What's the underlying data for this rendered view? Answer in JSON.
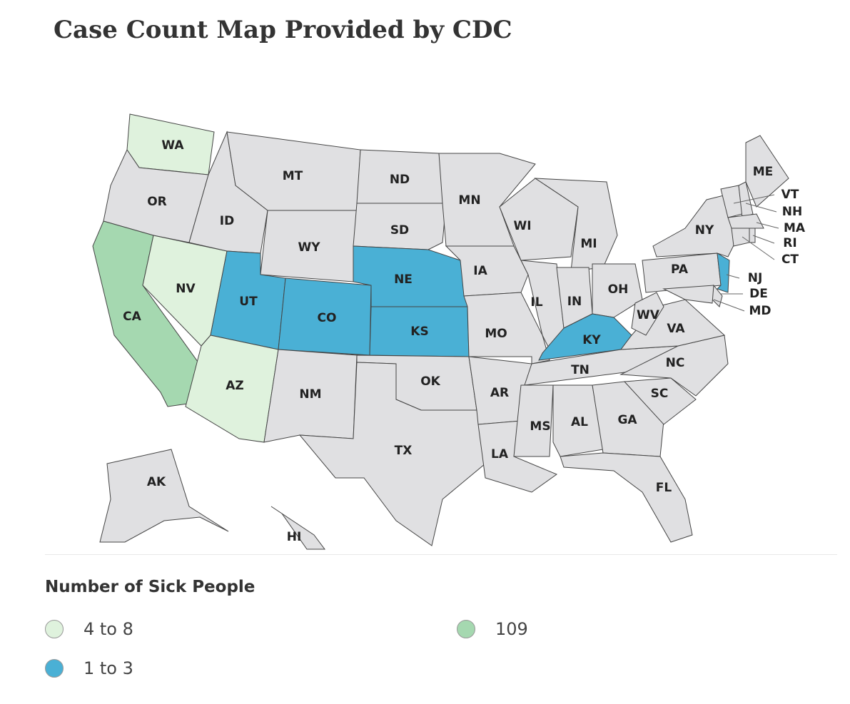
{
  "title": "Case Count Map Provided by CDC",
  "default_color": "#e0e0e2",
  "legend": {
    "title": "Number of Sick People",
    "items": [
      {
        "label": "4 to 8",
        "color": "#dff2dd"
      },
      {
        "label": "1 to 3",
        "color": "#4ab0d5"
      },
      {
        "label": "109",
        "color": "#a5d8b0"
      }
    ]
  },
  "states": [
    {
      "abbr": "WA",
      "group": 0
    },
    {
      "abbr": "OR",
      "group": null
    },
    {
      "abbr": "CA",
      "group": 2
    },
    {
      "abbr": "NV",
      "group": 0
    },
    {
      "abbr": "ID",
      "group": null
    },
    {
      "abbr": "MT",
      "group": null
    },
    {
      "abbr": "WY",
      "group": null
    },
    {
      "abbr": "UT",
      "group": 1
    },
    {
      "abbr": "AZ",
      "group": 0
    },
    {
      "abbr": "CO",
      "group": 1
    },
    {
      "abbr": "NM",
      "group": null
    },
    {
      "abbr": "ND",
      "group": null
    },
    {
      "abbr": "SD",
      "group": null
    },
    {
      "abbr": "NE",
      "group": 1
    },
    {
      "abbr": "KS",
      "group": 1
    },
    {
      "abbr": "OK",
      "group": null
    },
    {
      "abbr": "TX",
      "group": null
    },
    {
      "abbr": "MN",
      "group": null
    },
    {
      "abbr": "IA",
      "group": null
    },
    {
      "abbr": "MO",
      "group": null
    },
    {
      "abbr": "AR",
      "group": null
    },
    {
      "abbr": "LA",
      "group": null
    },
    {
      "abbr": "WI",
      "group": null
    },
    {
      "abbr": "IL",
      "group": null
    },
    {
      "abbr": "MI",
      "group": null
    },
    {
      "abbr": "IN",
      "group": null
    },
    {
      "abbr": "OH",
      "group": null
    },
    {
      "abbr": "KY",
      "group": 1
    },
    {
      "abbr": "TN",
      "group": null
    },
    {
      "abbr": "MS",
      "group": null
    },
    {
      "abbr": "AL",
      "group": null
    },
    {
      "abbr": "GA",
      "group": null
    },
    {
      "abbr": "FL",
      "group": null
    },
    {
      "abbr": "SC",
      "group": null
    },
    {
      "abbr": "NC",
      "group": null
    },
    {
      "abbr": "VA",
      "group": null
    },
    {
      "abbr": "WV",
      "group": null
    },
    {
      "abbr": "PA",
      "group": null
    },
    {
      "abbr": "NY",
      "group": null
    },
    {
      "abbr": "NJ",
      "group": 1
    },
    {
      "abbr": "DE",
      "group": null
    },
    {
      "abbr": "MD",
      "group": null
    },
    {
      "abbr": "VT",
      "group": null
    },
    {
      "abbr": "NH",
      "group": null
    },
    {
      "abbr": "MA",
      "group": null
    },
    {
      "abbr": "RI",
      "group": null
    },
    {
      "abbr": "CT",
      "group": null
    },
    {
      "abbr": "ME",
      "group": null
    },
    {
      "abbr": "AK",
      "group": null
    },
    {
      "abbr": "HI",
      "group": null
    }
  ]
}
